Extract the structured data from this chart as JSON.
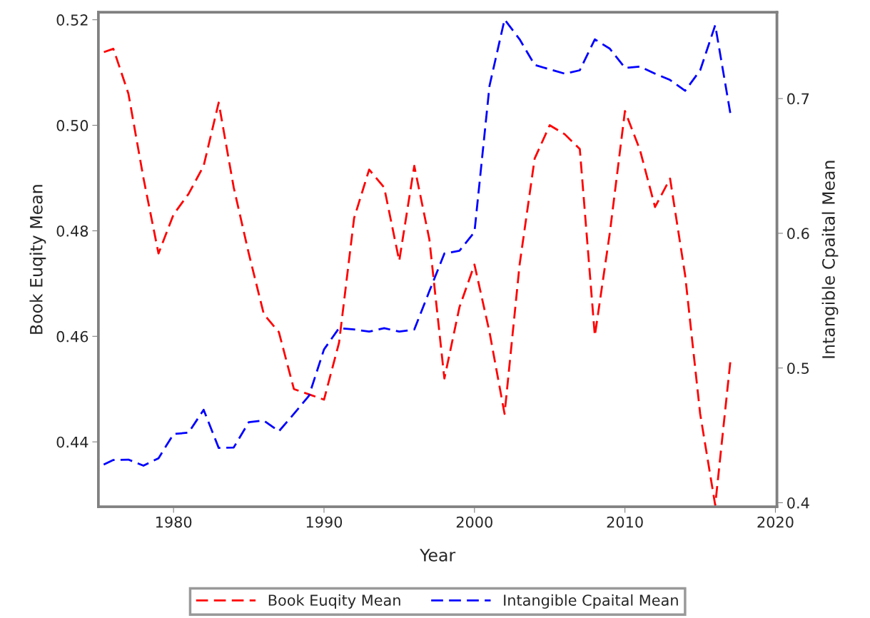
{
  "chart_data": {
    "type": "line",
    "xlabel": "Year",
    "ylabel": "Book Euqity Mean",
    "y2label": "Intangible Cpaital Mean",
    "x": [
      1975,
      1976,
      1977,
      1978,
      1979,
      1980,
      1981,
      1982,
      1983,
      1984,
      1985,
      1986,
      1987,
      1988,
      1989,
      1990,
      1991,
      1992,
      1993,
      1994,
      1995,
      1996,
      1997,
      1998,
      1999,
      2000,
      2001,
      2002,
      2003,
      2004,
      2005,
      2006,
      2007,
      2008,
      2009,
      2010,
      2011,
      2012,
      2013,
      2014,
      2015,
      2016,
      2017
    ],
    "series": [
      {
        "name": "Book Euqity Mean",
        "color": "#ff0000",
        "values": [
          0.5135,
          0.5145,
          0.506,
          0.49,
          0.4757,
          0.4831,
          0.487,
          0.4923,
          0.5043,
          0.4882,
          0.4757,
          0.4642,
          0.4608,
          0.45,
          0.449,
          0.448,
          0.4588,
          0.4824,
          0.4916,
          0.4882,
          0.4743,
          0.4923,
          0.4784,
          0.452,
          0.4655,
          0.4736,
          0.4608,
          0.4453,
          0.4736,
          0.4937,
          0.5,
          0.4983,
          0.4955,
          0.4601,
          0.4797,
          0.5027,
          0.4953,
          0.4845,
          0.4899,
          0.4716,
          0.4453,
          0.428,
          0.4551
        ]
      },
      {
        "name": "Intangible Cpaital Mean",
        "color": "#0000ff",
        "axis": "y2",
        "values": [
          0.4265,
          0.4317,
          0.432,
          0.4275,
          0.433,
          0.451,
          0.452,
          0.469,
          0.4407,
          0.441,
          0.4598,
          0.461,
          0.453,
          0.466,
          0.4794,
          0.5138,
          0.5296,
          0.5286,
          0.527,
          0.5296,
          0.527,
          0.5286,
          0.557,
          0.585,
          0.587,
          0.601,
          0.7095,
          0.7587,
          0.744,
          0.725,
          0.7217,
          0.7185,
          0.721,
          0.744,
          0.737,
          0.7228,
          0.7238,
          0.7185,
          0.7138,
          0.7058,
          0.721,
          0.7545,
          0.6894
        ]
      }
    ],
    "xlim": [
      1975,
      2020.1
    ],
    "xticks": [
      1980,
      1990,
      2000,
      2010,
      2020
    ],
    "ylim": [
      0.4277,
      0.5214
    ],
    "yticks": [
      0.44,
      0.46,
      0.48,
      {
        "value": 0.5,
        "label": "0.50"
      },
      0.52
    ],
    "y2lim": [
      0.397,
      0.764
    ],
    "y2ticks": [
      0.4,
      0.5,
      0.6,
      0.7
    ],
    "line_style": "dashed",
    "marker": "none",
    "grid": false,
    "legend": "bottom"
  }
}
